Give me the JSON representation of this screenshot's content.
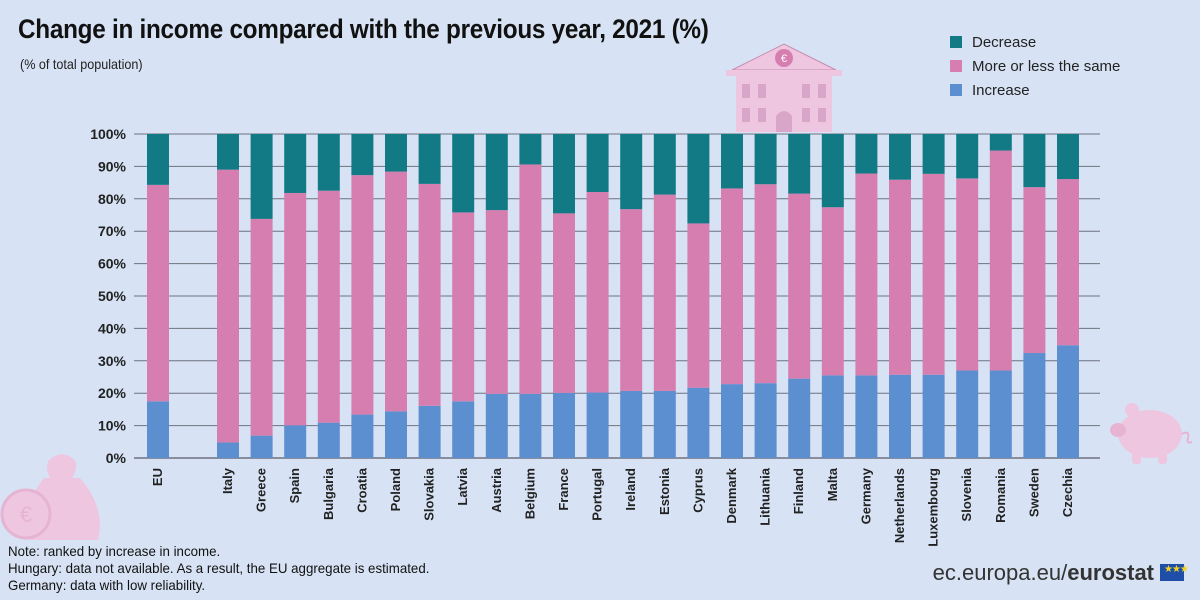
{
  "chart_data": {
    "type": "bar",
    "stacked": true,
    "title": "Change in income compared with the previous year, 2021 (%)",
    "subtitle": "(% of total population)",
    "categories": [
      "EU",
      "Italy",
      "Greece",
      "Spain",
      "Bulgaria",
      "Croatia",
      "Poland",
      "Slovakia",
      "Latvia",
      "Austria",
      "Belgium",
      "France",
      "Portugal",
      "Ireland",
      "Estonia",
      "Cyprus",
      "Denmark",
      "Lithuania",
      "Finland",
      "Malta",
      "Germany",
      "Netherlands",
      "Luxembourg",
      "Slovenia",
      "Romania",
      "Sweden",
      "Czechia"
    ],
    "series": [
      {
        "name": "Increase",
        "color": "#5b8fd0",
        "values": [
          17.5,
          4.8,
          6.9,
          10.1,
          10.9,
          13.4,
          14.4,
          16.1,
          17.5,
          19.8,
          19.8,
          20.1,
          20.2,
          20.7,
          20.7,
          21.7,
          22.8,
          23.1,
          24.5,
          25.5,
          25.5,
          25.7,
          25.7,
          27.0,
          27.0,
          32.4,
          34.8
        ]
      },
      {
        "name": "More or less the same",
        "color": "#d77eb0",
        "values": [
          66.8,
          84.2,
          66.9,
          71.7,
          71.6,
          73.9,
          74.0,
          68.5,
          58.3,
          56.7,
          70.8,
          55.4,
          61.9,
          56.1,
          60.6,
          50.7,
          60.4,
          61.4,
          57.1,
          51.9,
          62.3,
          60.2,
          62.0,
          59.3,
          67.9,
          51.2,
          51.3
        ]
      },
      {
        "name": "Decrease",
        "color": "#127a85",
        "values": [
          15.7,
          11.0,
          26.2,
          18.2,
          17.5,
          12.7,
          11.6,
          15.4,
          24.2,
          23.5,
          9.4,
          24.5,
          17.9,
          23.2,
          18.7,
          27.6,
          16.8,
          15.5,
          18.4,
          22.6,
          12.2,
          14.1,
          12.3,
          13.7,
          5.1,
          16.4,
          13.9
        ]
      }
    ],
    "legend_order": [
      "Decrease",
      "More or less the same",
      "Increase"
    ],
    "yticks": [
      "0%",
      "10%",
      "20%",
      "30%",
      "40%",
      "50%",
      "60%",
      "70%",
      "80%",
      "90%",
      "100%"
    ],
    "ylim": [
      0,
      100
    ],
    "grid": true,
    "legend_position": "top-right"
  },
  "notes": [
    "Note: ranked by increase in income.",
    "Hungary: data not available. As a result, the EU aggregate is estimated.",
    "Germany: data with low reliability."
  ],
  "brand": {
    "prefix": "ec.europa.eu/",
    "name": "eurostat"
  },
  "decor": {
    "bank_symbol": "€",
    "coin_symbol": "€"
  }
}
